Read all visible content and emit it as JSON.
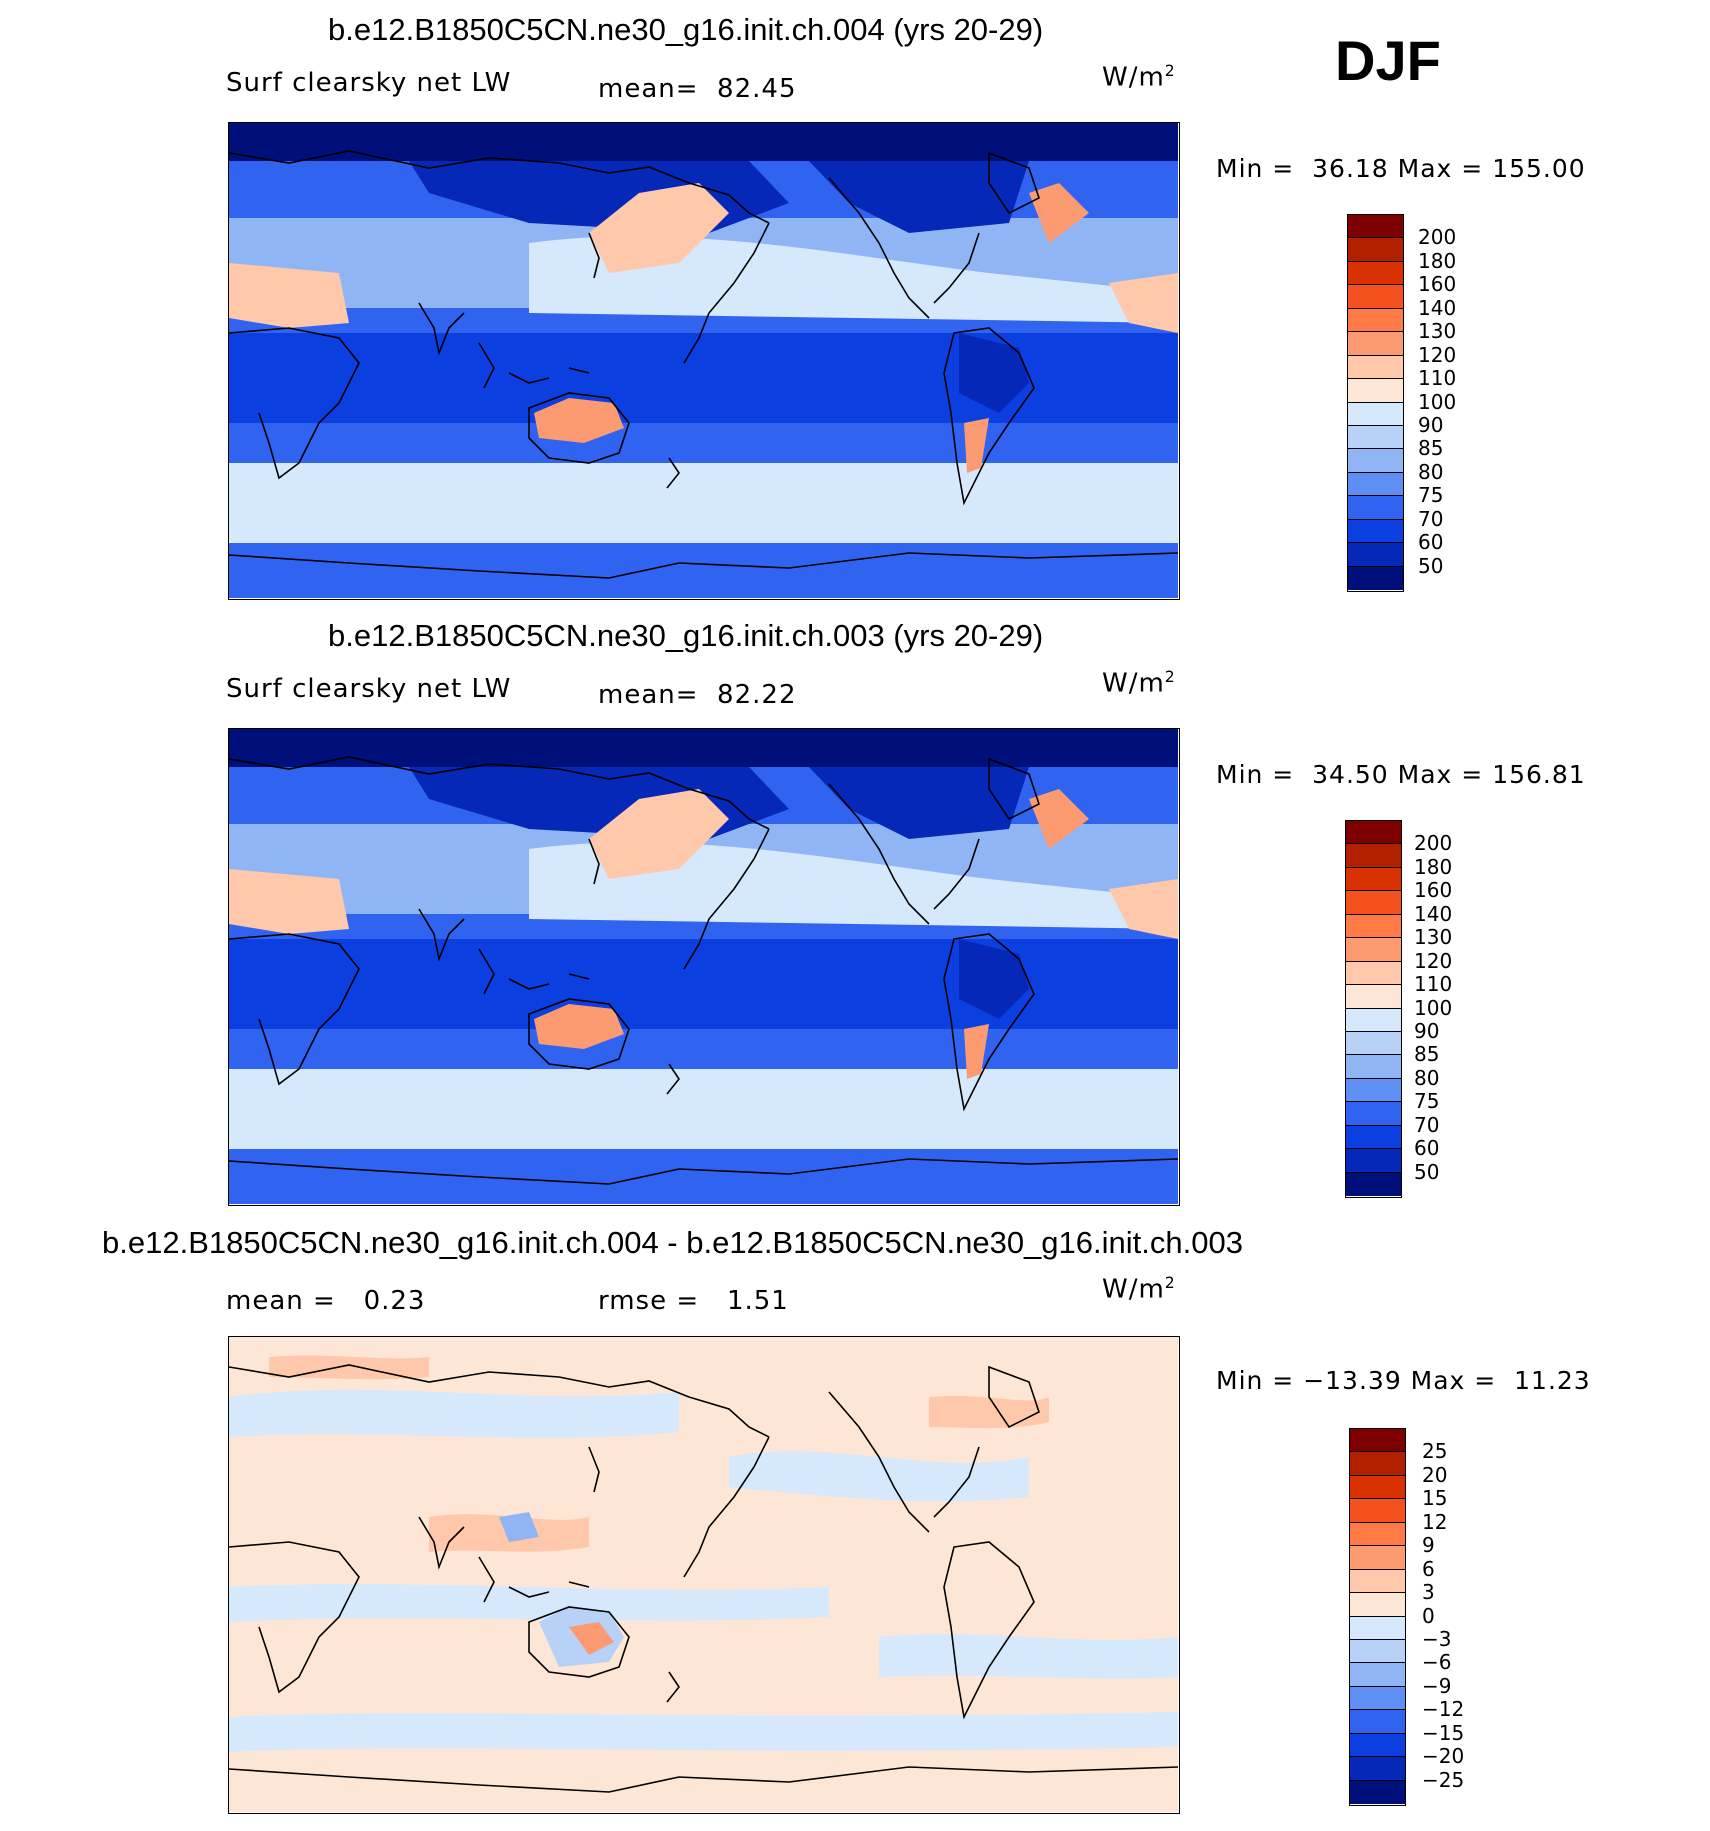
{
  "season": "DJF",
  "units_base": "W/m",
  "units_exp": "2",
  "panels": [
    {
      "title": "b.e12.B1850C5CN.ne30_g16.init.ch.004 (yrs 20-29)",
      "variable": "Surf clearsky net LW",
      "stat1": "mean=  82.45",
      "stat2": "",
      "minmax": "Min =  36.18 Max = 155.00",
      "colorbar": {
        "labels": [
          "200",
          "180",
          "160",
          "140",
          "130",
          "120",
          "110",
          "100",
          "90",
          "85",
          "80",
          "75",
          "70",
          "60",
          "50"
        ],
        "colors": [
          "#7f0000",
          "#b22000",
          "#d93200",
          "#f4511e",
          "#ff7a45",
          "#fc9a72",
          "#ffc8aa",
          "#fde6d6",
          "#d6e8fb",
          "#b7d2f6",
          "#8fb5f5",
          "#5e8ff5",
          "#2f63f0",
          "#0b3fe0",
          "#0628b8",
          "#00107a"
        ]
      },
      "map_colors": {
        "ocean_low": "#0b3fe0",
        "ocean_mid": "#2f63f0",
        "ocean_high": "#8fb5f5",
        "subtropic": "#d6e8fb",
        "warm": "#ffc8aa",
        "hot": "#fc9a72",
        "polar": "#00107a",
        "deep": "#0628b8"
      }
    },
    {
      "title": "b.e12.B1850C5CN.ne30_g16.init.ch.003 (yrs 20-29)",
      "variable": "Surf clearsky net LW",
      "stat1": "mean=  82.22",
      "stat2": "",
      "minmax": "Min =  34.50 Max = 156.81",
      "colorbar": {
        "labels": [
          "200",
          "180",
          "160",
          "140",
          "130",
          "120",
          "110",
          "100",
          "90",
          "85",
          "80",
          "75",
          "70",
          "60",
          "50"
        ],
        "colors": [
          "#7f0000",
          "#b22000",
          "#d93200",
          "#f4511e",
          "#ff7a45",
          "#fc9a72",
          "#ffc8aa",
          "#fde6d6",
          "#d6e8fb",
          "#b7d2f6",
          "#8fb5f5",
          "#5e8ff5",
          "#2f63f0",
          "#0b3fe0",
          "#0628b8",
          "#00107a"
        ]
      }
    },
    {
      "title": "b.e12.B1850C5CN.ne30_g16.init.ch.004 - b.e12.B1850C5CN.ne30_g16.init.ch.003",
      "variable": "",
      "stat1": "mean =   0.23",
      "stat2": "rmse =   1.51",
      "minmax": "Min = −13.39 Max =  11.23",
      "colorbar": {
        "labels": [
          "25",
          "20",
          "15",
          "12",
          "9",
          "6",
          "3",
          "0",
          "−3",
          "−6",
          "−9",
          "−12",
          "−15",
          "−20",
          "−25"
        ],
        "colors": [
          "#7f0000",
          "#b22000",
          "#d93200",
          "#f4511e",
          "#ff7a45",
          "#fc9a72",
          "#ffc8aa",
          "#fde6d6",
          "#d6e8fb",
          "#b7d2f6",
          "#8fb5f5",
          "#5e8ff5",
          "#2f63f0",
          "#0b3fe0",
          "#0628b8",
          "#00107a"
        ]
      }
    }
  ]
}
